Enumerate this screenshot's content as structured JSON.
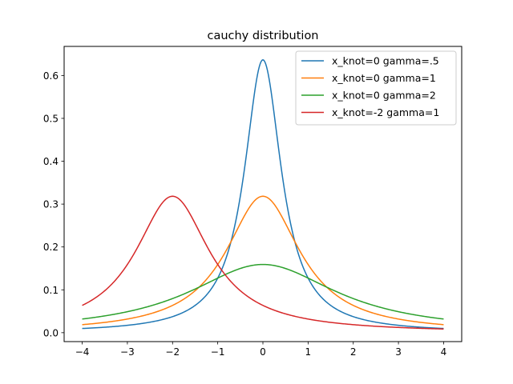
{
  "chart_data": {
    "type": "line",
    "title": "cauchy distribution",
    "xlabel": "",
    "ylabel": "",
    "xlim": [
      -4.4,
      4.4
    ],
    "ylim": [
      -0.0208,
      0.6679
    ],
    "xticks": [
      -4,
      -3,
      -2,
      -1,
      0,
      1,
      2,
      3,
      4
    ],
    "xtick_labels": [
      "−4",
      "−3",
      "−2",
      "−1",
      "0",
      "1",
      "2",
      "3",
      "4"
    ],
    "yticks": [
      0.0,
      0.1,
      0.2,
      0.3,
      0.4,
      0.5,
      0.6
    ],
    "ytick_labels": [
      "0.0",
      "0.1",
      "0.2",
      "0.3",
      "0.4",
      "0.5",
      "0.6"
    ],
    "grid": false,
    "legend_position": "top-right",
    "x_domain": [
      -4,
      4
    ],
    "series": [
      {
        "name": "x_knot=0 gamma=.5",
        "color": "#1f77b4",
        "x0": 0,
        "gamma": 0.5,
        "sample_points": [
          [
            -4,
            0.0098
          ],
          [
            -2,
            0.0374
          ],
          [
            -1,
            0.1273
          ],
          [
            0,
            0.6366
          ],
          [
            1,
            0.1273
          ],
          [
            2,
            0.0374
          ],
          [
            4,
            0.0098
          ]
        ]
      },
      {
        "name": "x_knot=0 gamma=1",
        "color": "#ff7f0e",
        "x0": 0,
        "gamma": 1,
        "sample_points": [
          [
            -4,
            0.0187
          ],
          [
            -2,
            0.0637
          ],
          [
            -1,
            0.1592
          ],
          [
            0,
            0.3183
          ],
          [
            1,
            0.1592
          ],
          [
            2,
            0.0637
          ],
          [
            4,
            0.0187
          ]
        ]
      },
      {
        "name": "x_knot=0 gamma=2",
        "color": "#2ca02c",
        "x0": 0,
        "gamma": 2,
        "sample_points": [
          [
            -4,
            0.0318
          ],
          [
            -2,
            0.0796
          ],
          [
            -1,
            0.1273
          ],
          [
            0,
            0.1592
          ],
          [
            1,
            0.1273
          ],
          [
            2,
            0.0796
          ],
          [
            4,
            0.0318
          ]
        ]
      },
      {
        "name": "x_knot=-2 gamma=1",
        "color": "#d62728",
        "x0": -2,
        "gamma": 1,
        "sample_points": [
          [
            -4,
            0.0637
          ],
          [
            -2,
            0.3183
          ],
          [
            -1,
            0.1592
          ],
          [
            0,
            0.0637
          ],
          [
            2,
            0.0187
          ],
          [
            4,
            0.0088
          ]
        ]
      }
    ]
  }
}
